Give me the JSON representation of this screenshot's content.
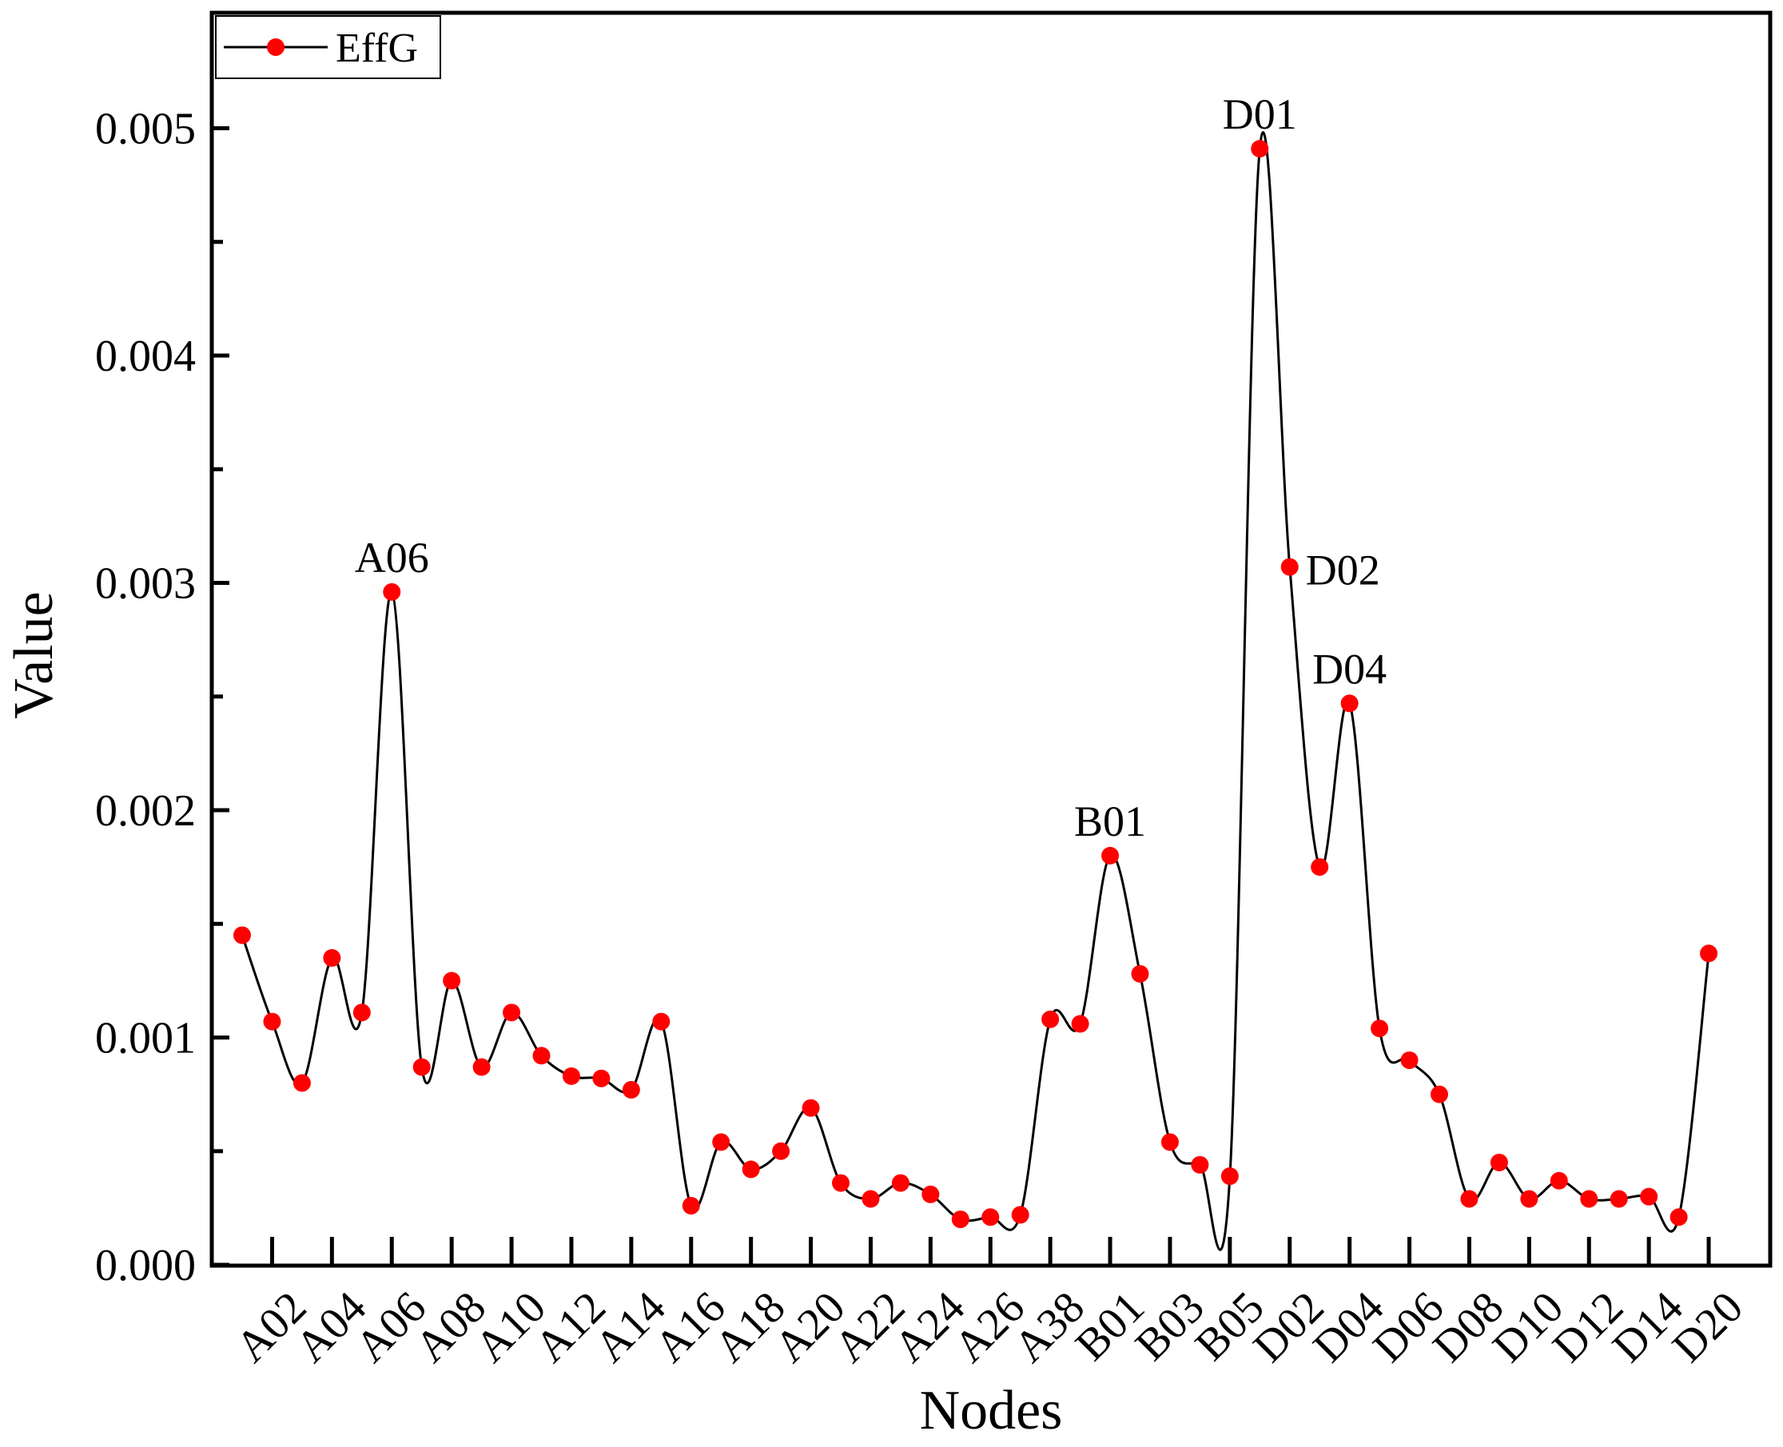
{
  "chart_data": {
    "type": "line",
    "title": "",
    "xlabel": "Nodes",
    "ylabel": "Value",
    "ylim": [
      0,
      0.0055
    ],
    "yticks": [
      0.0,
      0.001,
      0.002,
      0.003,
      0.004,
      0.005
    ],
    "ytick_labels": [
      "0.000",
      "0.001",
      "0.002",
      "0.003",
      "0.004",
      "0.005"
    ],
    "grid": false,
    "legend": {
      "position": "top-left",
      "entries": [
        "EffG"
      ]
    },
    "x_tick_labels": [
      "A02",
      "A04",
      "A06",
      "A08",
      "A10",
      "A12",
      "A14",
      "A16",
      "A18",
      "A20",
      "A22",
      "A24",
      "A26",
      "A38",
      "B01",
      "B03",
      "B05",
      "D02",
      "D04",
      "D06",
      "D08",
      "D10",
      "D12",
      "D14",
      "D20"
    ],
    "x_tick_indices": [
      2,
      4,
      6,
      8,
      10,
      12,
      14,
      16,
      18,
      20,
      22,
      24,
      26,
      28,
      30,
      32,
      34,
      36,
      38,
      40,
      42,
      44,
      46,
      48,
      50
    ],
    "series": [
      {
        "name": "EffG",
        "color": "#ff0000",
        "line_color": "#000000",
        "x": [
          1,
          2,
          3,
          4,
          5,
          6,
          7,
          8,
          9,
          10,
          11,
          12,
          13,
          14,
          15,
          16,
          17,
          18,
          19,
          20,
          21,
          22,
          23,
          24,
          25,
          26,
          27,
          28,
          29,
          30,
          31,
          32,
          33,
          34,
          35,
          36,
          37,
          38,
          39,
          40,
          41,
          42,
          43,
          44,
          45,
          46,
          47,
          48,
          49,
          50
        ],
        "values": [
          0.00145,
          0.00107,
          0.0008,
          0.00135,
          0.00111,
          0.00296,
          0.00087,
          0.00125,
          0.00087,
          0.00111,
          0.00092,
          0.00083,
          0.00082,
          0.00077,
          0.00107,
          0.00026,
          0.00054,
          0.00042,
          0.0005,
          0.00069,
          0.00036,
          0.00029,
          0.00036,
          0.00031,
          0.0002,
          0.00021,
          0.00022,
          0.00108,
          0.00106,
          0.0018,
          0.00128,
          0.00054,
          0.00044,
          0.00039,
          0.00491,
          0.00307,
          0.00175,
          0.00247,
          0.00104,
          0.0009,
          0.00075,
          0.00029,
          0.00045,
          0.00029,
          0.00037,
          0.00029,
          0.00029,
          0.0003,
          0.00021,
          0.00137
        ]
      }
    ],
    "annotations": [
      {
        "text": "A06",
        "x": 6,
        "y": 0.00296,
        "position": "above"
      },
      {
        "text": "B01",
        "x": 30,
        "y": 0.0018,
        "position": "above"
      },
      {
        "text": "D01",
        "x": 35,
        "y": 0.00491,
        "position": "above"
      },
      {
        "text": "D02",
        "x": 36,
        "y": 0.00307,
        "position": "right"
      },
      {
        "text": "D04",
        "x": 38,
        "y": 0.00247,
        "position": "above"
      }
    ]
  }
}
